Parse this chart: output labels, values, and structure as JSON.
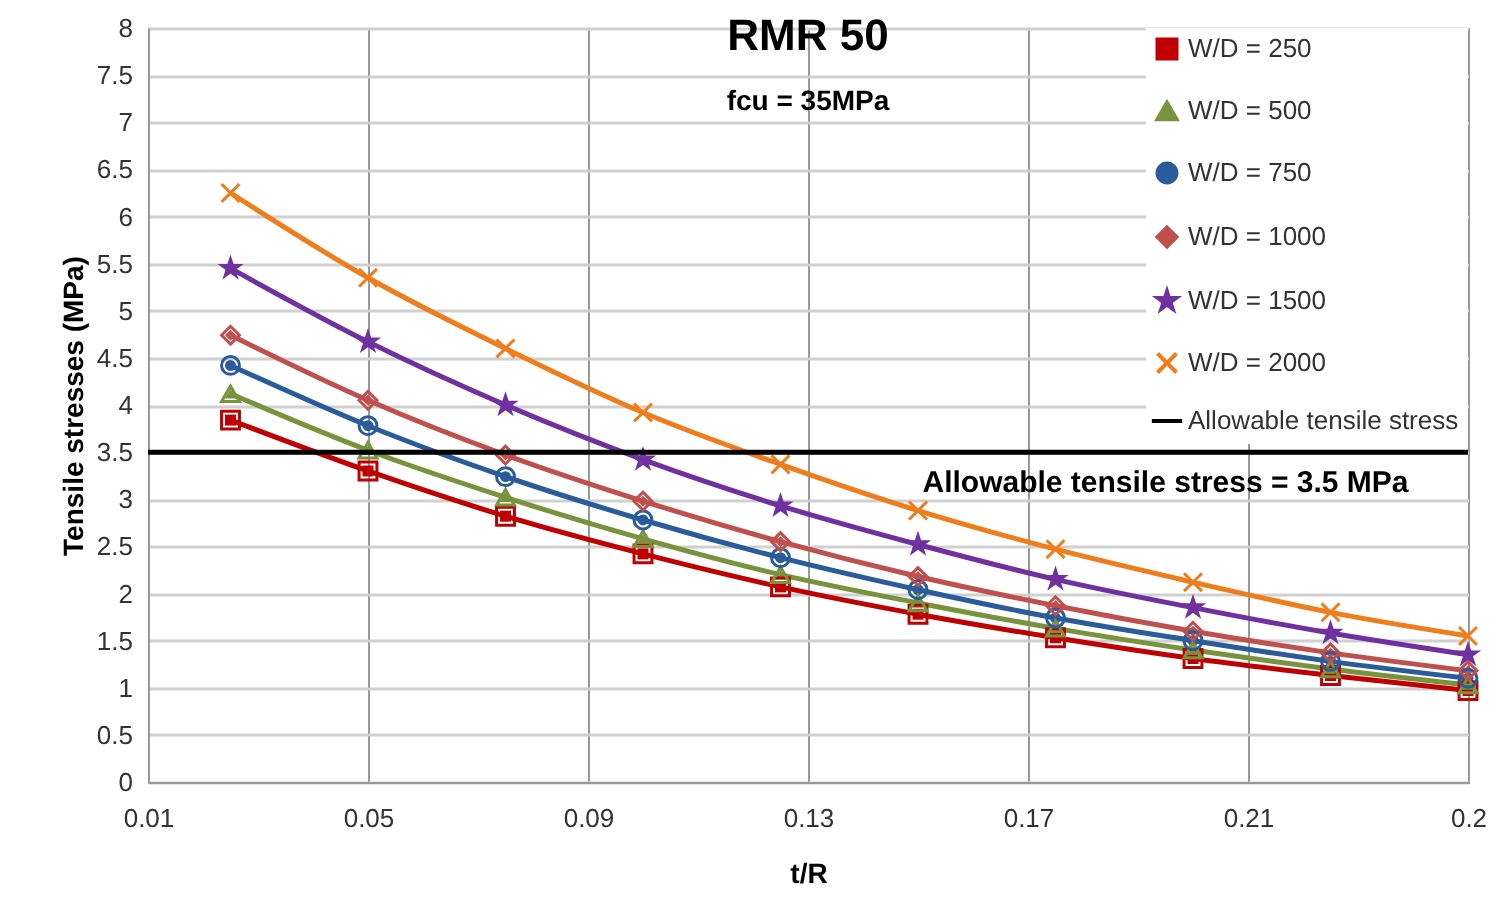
{
  "chart_data": {
    "type": "line",
    "title": "RMR 50",
    "subtitle": "fcu = 35MPa",
    "xlabel": "t/R",
    "ylabel": "Tensile stresses (MPa)",
    "x": [
      0.025,
      0.05,
      0.075,
      0.1,
      0.125,
      0.15,
      0.175,
      0.2,
      0.225,
      0.25
    ],
    "series": [
      {
        "name": "W/D = 250",
        "color": "#c00000",
        "marker": "square",
        "values": [
          3.84,
          3.3,
          2.82,
          2.42,
          2.07,
          1.78,
          1.53,
          1.31,
          1.13,
          0.97
        ]
      },
      {
        "name": "W/D = 500",
        "color": "#77933c",
        "marker": "triangle",
        "values": [
          4.12,
          3.52,
          3.02,
          2.58,
          2.2,
          1.9,
          1.63,
          1.4,
          1.2,
          1.03
        ]
      },
      {
        "name": "W/D = 750",
        "color": "#2a5b9b",
        "marker": "circle",
        "values": [
          4.42,
          3.78,
          3.24,
          2.78,
          2.38,
          2.04,
          1.74,
          1.5,
          1.28,
          1.1
        ]
      },
      {
        "name": "W/D = 1000",
        "color": "#c0504d",
        "marker": "diamond",
        "values": [
          4.74,
          4.05,
          3.47,
          2.98,
          2.55,
          2.18,
          1.87,
          1.6,
          1.37,
          1.18
        ]
      },
      {
        "name": "W/D = 1500",
        "color": "#7030a0",
        "marker": "star",
        "values": [
          5.45,
          4.67,
          4.0,
          3.42,
          2.93,
          2.52,
          2.15,
          1.85,
          1.58,
          1.35
        ]
      },
      {
        "name": "W/D = 2000",
        "color": "#f07d1c",
        "marker": "cross",
        "values": [
          6.25,
          5.35,
          4.6,
          3.92,
          3.37,
          2.88,
          2.47,
          2.12,
          1.8,
          1.55
        ]
      }
    ],
    "ref_lines": [
      {
        "axis": "y",
        "value": 3.5,
        "label": "Allowable tensile stress",
        "color": "#000000"
      }
    ],
    "annotations": [
      {
        "text": "Allowable tensile stress = 3.5 MPa",
        "x": 0.195,
        "y": 3.5
      }
    ],
    "xlim": [
      0.01,
      0.25
    ],
    "xticks": [
      0.01,
      0.05,
      0.09,
      0.13,
      0.17,
      0.21,
      {
        "value": 0.25,
        "label": "0.2"
      }
    ],
    "ylim": [
      0,
      8
    ],
    "yticks": [
      0,
      0.5,
      1,
      1.5,
      2,
      2.5,
      3,
      3.5,
      4,
      4.5,
      5,
      5.5,
      6,
      6.5,
      7,
      7.5,
      8
    ],
    "grid": true,
    "legend": "top right"
  }
}
